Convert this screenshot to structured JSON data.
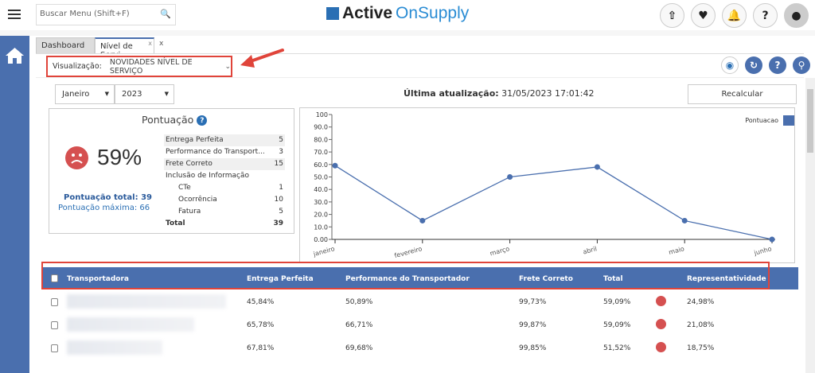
{
  "header": {
    "search_placeholder": "Buscar Menu  (Shift+F)",
    "logo_active": "Active",
    "logo_onsupply": "OnSupply",
    "icons": [
      "file-upload-icon",
      "heartbeat-icon",
      "bell-icon",
      "help-icon",
      "user-avatar-icon"
    ]
  },
  "tabs": [
    {
      "label": "Dashboard"
    },
    {
      "label": "Nível de Servi",
      "close": "x"
    }
  ],
  "tabs_close_all": "x",
  "toolbar": {
    "viz_label": "Visualização:",
    "viz_value": "NOVIDADES NÍVEL DE SERVIÇO",
    "icons": [
      "eye-icon",
      "refresh-icon",
      "help-icon",
      "search-icon"
    ]
  },
  "filters": {
    "month": "Janeiro",
    "year": "2023",
    "last_update_label": "Última atualização:",
    "last_update_value": "31/05/2023 17:01:42",
    "recalc": "Recalcular"
  },
  "score": {
    "title": "Pontuação",
    "percent": "59%",
    "status_color": "#d55050",
    "total": "Pontuação total: 39",
    "max": "Pontuação máxima: 66",
    "rows": [
      {
        "label": "Entrega Perfeita",
        "value": "5"
      },
      {
        "label": "Performance do Transport...",
        "value": "3"
      },
      {
        "label": "Frete Correto",
        "value": "15"
      },
      {
        "label": "Inclusão de Informação",
        "value": ""
      },
      {
        "label": "CTe",
        "value": "1"
      },
      {
        "label": "Ocorrência",
        "value": "10"
      },
      {
        "label": "Fatura",
        "value": "5"
      },
      {
        "label": "Total",
        "value": "39"
      }
    ]
  },
  "chart_data": {
    "type": "line",
    "categories": [
      "janeiro",
      "fevereiro",
      "março",
      "abril",
      "maio",
      "junho"
    ],
    "series": [
      {
        "name": "Pontuacao",
        "values": [
          59.09,
          15,
          50,
          58,
          15,
          0
        ],
        "color": "#4a6fae"
      }
    ],
    "yticks": [
      "0.00",
      "10.0",
      "20.0",
      "30.0",
      "40.0",
      "50.0",
      "60.0",
      "70.0",
      "80.0",
      "90.0",
      "100"
    ],
    "ylim": [
      0,
      100
    ],
    "legend": "top-right",
    "grid": false
  },
  "table": {
    "columns": [
      "Transportadora",
      "Entrega Perfeita",
      "Performance do Transportador",
      "Frete Correto",
      "Total",
      "Representatividade"
    ],
    "rows": [
      {
        "entrega": "45,84%",
        "performance": "50,89%",
        "frete": "99,73%",
        "total": "59,09%",
        "repr": "24,98%"
      },
      {
        "entrega": "65,78%",
        "performance": "66,71%",
        "frete": "99,87%",
        "total": "59,09%",
        "repr": "21,08%"
      },
      {
        "entrega": "67,81%",
        "performance": "69,68%",
        "frete": "99,85%",
        "total": "51,52%",
        "repr": "18,75%"
      }
    ]
  }
}
